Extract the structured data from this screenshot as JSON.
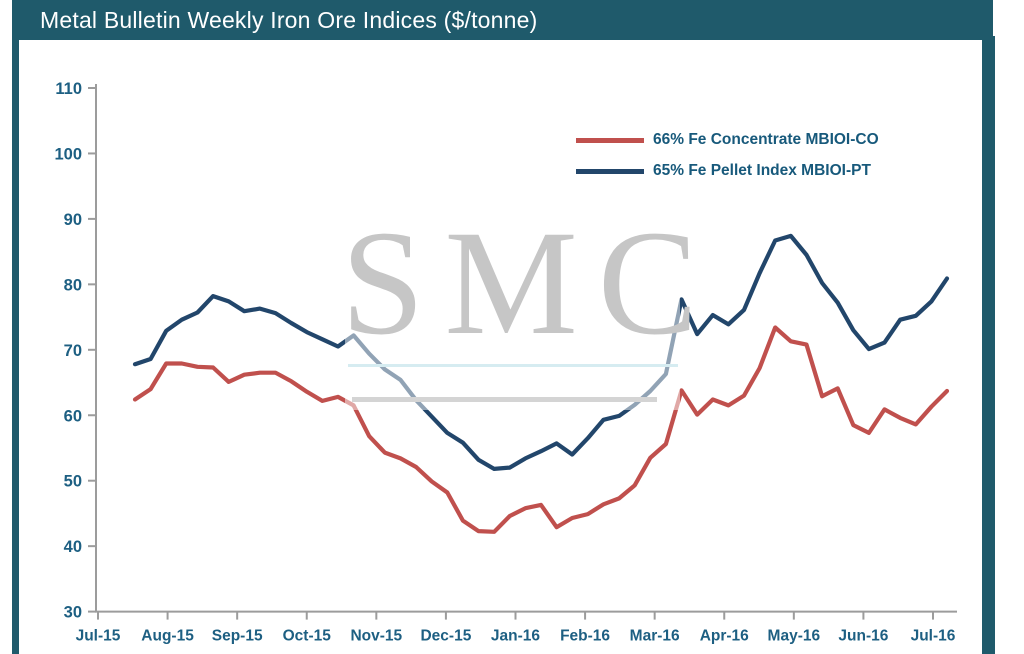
{
  "header": {
    "title": "Metal Bulletin Weekly Iron Ore Indices ($/tonne)"
  },
  "watermark": {
    "text": "SMC"
  },
  "colors": {
    "frame_teal": "#1f5a6b",
    "axis_gray": "#9c9c9c",
    "tick_label": "#1d5f82",
    "legend_text": "#17597b",
    "concentrate_red": "#c0504d",
    "pellet_blue": "#22466b"
  },
  "chart_data": {
    "type": "line",
    "title": "Metal Bulletin Weekly Iron Ore Indices ($/tonne)",
    "xlabel": "",
    "ylabel": "",
    "x_unit": "weekly, Jul-2015 to Jul-2016",
    "x_tick_labels": [
      "Jul-15",
      "Aug-15",
      "Sep-15",
      "Oct-15",
      "Nov-15",
      "Dec-15",
      "Jan-16",
      "Feb-16",
      "Mar-16",
      "Apr-16",
      "May-16",
      "Jun-16",
      "Jul-16"
    ],
    "y_ticks": [
      30,
      40,
      50,
      60,
      70,
      80,
      90,
      100,
      110
    ],
    "ylim": [
      30,
      110
    ],
    "grid": false,
    "legend_position": "upper-right-inside",
    "series": [
      {
        "name": "66% Fe Concentrate MBIOI-CO",
        "color": "#c0504d",
        "values": [
          62.4,
          64.0,
          67.9,
          67.9,
          67.4,
          67.3,
          65.1,
          66.2,
          66.5,
          66.5,
          65.2,
          63.6,
          62.2,
          62.8,
          61.5,
          56.8,
          54.3,
          53.4,
          52.1,
          49.9,
          48.2,
          43.9,
          42.3,
          42.2,
          44.6,
          45.8,
          46.3,
          42.9,
          44.3,
          44.9,
          46.4,
          47.3,
          49.3,
          53.5,
          55.6,
          63.8,
          60.1,
          62.4,
          61.5,
          63.0,
          67.2,
          73.4,
          71.3,
          70.8,
          62.9,
          64.1,
          58.5,
          57.3,
          60.9,
          59.6,
          58.6,
          61.3,
          63.7
        ]
      },
      {
        "name": "65% Fe Pellet Index MBIOI-PT",
        "color": "#22466b",
        "values": [
          67.8,
          68.6,
          72.9,
          74.6,
          75.7,
          78.2,
          77.4,
          75.9,
          76.3,
          75.6,
          74.1,
          72.7,
          71.6,
          70.5,
          72.2,
          69.4,
          67.0,
          65.4,
          62.3,
          59.8,
          57.3,
          55.8,
          53.2,
          51.8,
          52.0,
          53.4,
          54.5,
          55.7,
          54.0,
          56.5,
          59.3,
          59.9,
          61.6,
          63.7,
          66.3,
          77.7,
          72.4,
          75.3,
          73.9,
          76.1,
          81.7,
          86.7,
          87.4,
          84.5,
          80.2,
          77.2,
          73.0,
          70.1,
          71.1,
          74.6,
          75.2,
          77.4,
          80.9
        ]
      }
    ]
  }
}
